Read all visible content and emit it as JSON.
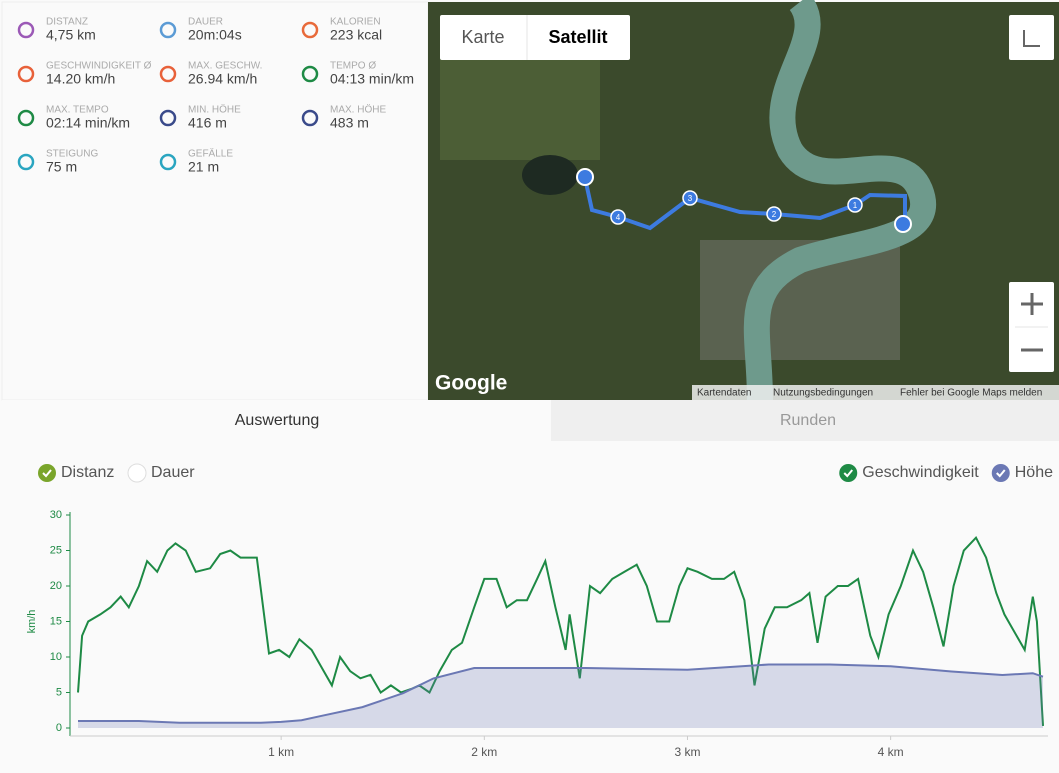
{
  "stats": [
    {
      "label": "DISTANZ",
      "value": "4,75 km"
    },
    {
      "label": "DAUER",
      "value": "20m:04s"
    },
    {
      "label": "KALORIEN",
      "value": "223 kcal"
    },
    {
      "label": "GESCHWINDIGKEIT Ø",
      "value": "14.20 km/h"
    },
    {
      "label": "MAX. GESCHW.",
      "value": "26.94 km/h"
    },
    {
      "label": "TEMPO Ø",
      "value": "04:13 min/km"
    },
    {
      "label": "MAX. TEMPO",
      "value": "02:14 min/km"
    },
    {
      "label": "MIN. HÖHE",
      "value": "416 m"
    },
    {
      "label": "MAX. HÖHE",
      "value": "483 m"
    },
    {
      "label": "STEIGUNG",
      "value": "75 m"
    },
    {
      "label": "GEFÄLLE",
      "value": "21 m"
    }
  ],
  "map": {
    "buttons": [
      "Karte",
      "Satellit"
    ],
    "logo": "Google",
    "attribution": [
      "Kartendaten",
      "Nutzungsbedingungen",
      "Fehler bei Google Maps melden"
    ],
    "markers": [
      "1",
      "2",
      "3",
      "4"
    ]
  },
  "tabs": [
    "Auswertung",
    "Runden"
  ],
  "toggles": [
    "Distanz",
    "Dauer"
  ],
  "chart_data": {
    "type": "line",
    "y_label": "km/h",
    "x": [
      0,
      0.02,
      0.05,
      0.11,
      0.16,
      0.21,
      0.25,
      0.3,
      0.34,
      0.39,
      0.44,
      0.48,
      0.53,
      0.58,
      0.65,
      0.7,
      0.75,
      0.8,
      0.88,
      0.94,
      0.99,
      1.04,
      1.09,
      1.15,
      1.21,
      1.25,
      1.29,
      1.34,
      1.39,
      1.44,
      1.49,
      1.54,
      1.59,
      1.64,
      1.68,
      1.73,
      1.78,
      1.84,
      1.89,
      1.95,
      2.0,
      2.06,
      2.11,
      2.16,
      2.21,
      2.26,
      2.3,
      2.35,
      2.4,
      2.42,
      2.47,
      2.52,
      2.57,
      2.63,
      2.69,
      2.75,
      2.8,
      2.85,
      2.91,
      2.96,
      3.0,
      3.05,
      3.12,
      3.18,
      3.23,
      3.28,
      3.33,
      3.38,
      3.43,
      3.49,
      3.56,
      3.6,
      3.64,
      3.68,
      3.74,
      3.79,
      3.84,
      3.9,
      3.94,
      3.99,
      4.05,
      4.11,
      4.16,
      4.21,
      4.26,
      4.31,
      4.36,
      4.42,
      4.47,
      4.52,
      4.56,
      4.6,
      4.66,
      4.7,
      4.72,
      4.75
    ],
    "series": [
      {
        "name": "Geschwindigkeit",
        "color": "#1e8a45",
        "values": [
          5,
          13,
          15,
          16,
          17,
          18.5,
          17,
          20,
          23.5,
          22,
          25,
          26,
          25,
          22,
          22.5,
          24.5,
          25,
          24,
          24,
          10.5,
          11,
          10,
          12.5,
          11,
          8,
          6,
          10,
          8,
          7,
          7.5,
          5,
          6,
          5,
          5.5,
          6,
          5,
          8,
          11,
          12,
          17,
          21,
          21,
          17,
          18,
          18,
          21,
          23.5,
          17,
          11,
          16,
          7,
          20,
          19,
          21,
          22,
          23,
          20,
          15,
          15,
          20,
          22.5,
          22,
          21,
          21,
          22,
          18,
          6,
          14,
          17,
          17,
          18,
          19,
          12,
          18.5,
          20,
          20,
          21,
          13,
          10,
          16,
          20,
          25,
          22,
          17,
          11.5,
          20,
          25,
          26.8,
          24,
          19,
          16,
          14,
          11,
          18.5,
          15,
          0.3
        ]
      },
      {
        "name": "Höhe",
        "color": "#6b78b4",
        "axis": "y2",
        "x": [
          0,
          0.3,
          0.5,
          0.9,
          1.0,
          1.1,
          1.2,
          1.4,
          1.6,
          1.75,
          1.95,
          2.5,
          3.0,
          3.4,
          3.7,
          4.0,
          4.3,
          4.55,
          4.7,
          4.75
        ],
        "values": [
          418,
          418,
          416,
          416,
          417,
          419,
          424,
          434,
          450,
          467,
          479,
          479,
          477,
          483,
          483,
          481,
          475,
          471,
          473,
          469
        ]
      }
    ],
    "xlim": [
      0,
      4.75
    ],
    "xticks": [
      {
        "value": 1,
        "label": "1 km"
      },
      {
        "value": 2,
        "label": "2 km"
      },
      {
        "value": 3,
        "label": "3 km"
      },
      {
        "value": 4,
        "label": "4 km"
      }
    ],
    "ylim": [
      0,
      30
    ],
    "yticks": [
      0,
      5,
      10,
      15,
      20,
      25,
      30
    ],
    "y2lim": [
      410,
      655
    ],
    "legend": "top-right"
  }
}
